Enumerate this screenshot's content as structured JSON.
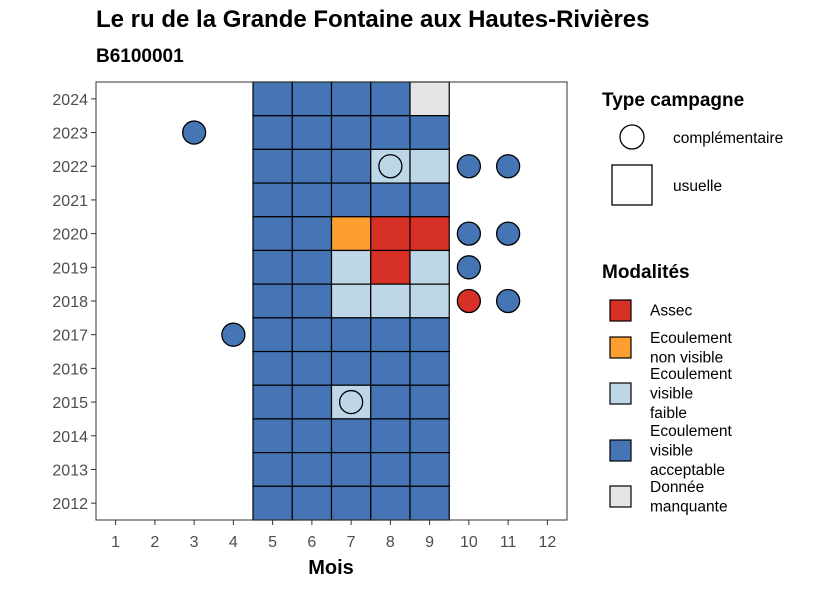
{
  "chart_data": {
    "type": "heatmap",
    "title": "Le ru de la Grande Fontaine aux Hautes-Rivières",
    "subtitle": "B6100001",
    "xlabel": "Mois",
    "ylabel": "",
    "x_ticks": [
      "1",
      "2",
      "3",
      "4",
      "5",
      "6",
      "7",
      "8",
      "9",
      "10",
      "11",
      "12"
    ],
    "y_ticks": [
      "2012",
      "2013",
      "2014",
      "2015",
      "2016",
      "2017",
      "2018",
      "2019",
      "2020",
      "2021",
      "2022",
      "2023",
      "2024"
    ],
    "xlim": [
      0.5,
      12.5
    ],
    "ylim": [
      2011.5,
      2024.5
    ],
    "grid": false,
    "legend_position": "right",
    "colors": {
      "Assec": "#d73027",
      "Ecoulement non visible": "#fd9f30",
      "Ecoulement visible faible": "#bdd7e7",
      "Ecoulement visible acceptable": "#4575b4",
      "Donnée manquante": "#e5e5e5"
    },
    "legend_campaign": {
      "title": "Type campagne",
      "items": [
        {
          "label": "complémentaire",
          "shape": "circle"
        },
        {
          "label": "usuelle",
          "shape": "square"
        }
      ]
    },
    "legend_modalities": {
      "title": "Modalités",
      "items": [
        {
          "key": "Assec",
          "lines": [
            "Assec"
          ]
        },
        {
          "key": "Ecoulement non visible",
          "lines": [
            "Ecoulement",
            "non visible"
          ]
        },
        {
          "key": "Ecoulement visible faible",
          "lines": [
            "Ecoulement",
            "visible",
            "faible"
          ]
        },
        {
          "key": "Ecoulement visible acceptable",
          "lines": [
            "Ecoulement",
            "visible",
            "acceptable"
          ]
        },
        {
          "key": "Donnée manquante",
          "lines": [
            "Donnée",
            "manquante"
          ]
        }
      ]
    },
    "usuelle": [
      {
        "year": 2024,
        "month": 5,
        "modalite": "Ecoulement visible acceptable"
      },
      {
        "year": 2024,
        "month": 6,
        "modalite": "Ecoulement visible acceptable"
      },
      {
        "year": 2024,
        "month": 7,
        "modalite": "Ecoulement visible acceptable"
      },
      {
        "year": 2024,
        "month": 8,
        "modalite": "Ecoulement visible acceptable"
      },
      {
        "year": 2024,
        "month": 9,
        "modalite": "Donnée manquante"
      },
      {
        "year": 2023,
        "month": 5,
        "modalite": "Ecoulement visible acceptable"
      },
      {
        "year": 2023,
        "month": 6,
        "modalite": "Ecoulement visible acceptable"
      },
      {
        "year": 2023,
        "month": 7,
        "modalite": "Ecoulement visible acceptable"
      },
      {
        "year": 2023,
        "month": 8,
        "modalite": "Ecoulement visible acceptable"
      },
      {
        "year": 2023,
        "month": 9,
        "modalite": "Ecoulement visible acceptable"
      },
      {
        "year": 2022,
        "month": 5,
        "modalite": "Ecoulement visible acceptable"
      },
      {
        "year": 2022,
        "month": 6,
        "modalite": "Ecoulement visible acceptable"
      },
      {
        "year": 2022,
        "month": 7,
        "modalite": "Ecoulement visible acceptable"
      },
      {
        "year": 2022,
        "month": 8,
        "modalite": "Ecoulement visible faible"
      },
      {
        "year": 2022,
        "month": 9,
        "modalite": "Ecoulement visible faible"
      },
      {
        "year": 2021,
        "month": 5,
        "modalite": "Ecoulement visible acceptable"
      },
      {
        "year": 2021,
        "month": 6,
        "modalite": "Ecoulement visible acceptable"
      },
      {
        "year": 2021,
        "month": 7,
        "modalite": "Ecoulement visible acceptable"
      },
      {
        "year": 2021,
        "month": 8,
        "modalite": "Ecoulement visible acceptable"
      },
      {
        "year": 2021,
        "month": 9,
        "modalite": "Ecoulement visible acceptable"
      },
      {
        "year": 2020,
        "month": 5,
        "modalite": "Ecoulement visible acceptable"
      },
      {
        "year": 2020,
        "month": 6,
        "modalite": "Ecoulement visible acceptable"
      },
      {
        "year": 2020,
        "month": 7,
        "modalite": "Ecoulement non visible"
      },
      {
        "year": 2020,
        "month": 8,
        "modalite": "Assec"
      },
      {
        "year": 2020,
        "month": 9,
        "modalite": "Assec"
      },
      {
        "year": 2019,
        "month": 5,
        "modalite": "Ecoulement visible acceptable"
      },
      {
        "year": 2019,
        "month": 6,
        "modalite": "Ecoulement visible acceptable"
      },
      {
        "year": 2019,
        "month": 7,
        "modalite": "Ecoulement visible faible"
      },
      {
        "year": 2019,
        "month": 8,
        "modalite": "Assec"
      },
      {
        "year": 2019,
        "month": 9,
        "modalite": "Ecoulement visible faible"
      },
      {
        "year": 2018,
        "month": 5,
        "modalite": "Ecoulement visible acceptable"
      },
      {
        "year": 2018,
        "month": 6,
        "modalite": "Ecoulement visible acceptable"
      },
      {
        "year": 2018,
        "month": 7,
        "modalite": "Ecoulement visible faible"
      },
      {
        "year": 2018,
        "month": 8,
        "modalite": "Ecoulement visible faible"
      },
      {
        "year": 2018,
        "month": 9,
        "modalite": "Ecoulement visible faible"
      },
      {
        "year": 2017,
        "month": 5,
        "modalite": "Ecoulement visible acceptable"
      },
      {
        "year": 2017,
        "month": 6,
        "modalite": "Ecoulement visible acceptable"
      },
      {
        "year": 2017,
        "month": 7,
        "modalite": "Ecoulement visible acceptable"
      },
      {
        "year": 2017,
        "month": 8,
        "modalite": "Ecoulement visible acceptable"
      },
      {
        "year": 2017,
        "month": 9,
        "modalite": "Ecoulement visible acceptable"
      },
      {
        "year": 2016,
        "month": 5,
        "modalite": "Ecoulement visible acceptable"
      },
      {
        "year": 2016,
        "month": 6,
        "modalite": "Ecoulement visible acceptable"
      },
      {
        "year": 2016,
        "month": 7,
        "modalite": "Ecoulement visible acceptable"
      },
      {
        "year": 2016,
        "month": 8,
        "modalite": "Ecoulement visible acceptable"
      },
      {
        "year": 2016,
        "month": 9,
        "modalite": "Ecoulement visible acceptable"
      },
      {
        "year": 2015,
        "month": 5,
        "modalite": "Ecoulement visible acceptable"
      },
      {
        "year": 2015,
        "month": 6,
        "modalite": "Ecoulement visible acceptable"
      },
      {
        "year": 2015,
        "month": 7,
        "modalite": "Ecoulement visible faible"
      },
      {
        "year": 2015,
        "month": 8,
        "modalite": "Ecoulement visible acceptable"
      },
      {
        "year": 2015,
        "month": 9,
        "modalite": "Ecoulement visible acceptable"
      },
      {
        "year": 2014,
        "month": 5,
        "modalite": "Ecoulement visible acceptable"
      },
      {
        "year": 2014,
        "month": 6,
        "modalite": "Ecoulement visible acceptable"
      },
      {
        "year": 2014,
        "month": 7,
        "modalite": "Ecoulement visible acceptable"
      },
      {
        "year": 2014,
        "month": 8,
        "modalite": "Ecoulement visible acceptable"
      },
      {
        "year": 2014,
        "month": 9,
        "modalite": "Ecoulement visible acceptable"
      },
      {
        "year": 2013,
        "month": 5,
        "modalite": "Ecoulement visible acceptable"
      },
      {
        "year": 2013,
        "month": 6,
        "modalite": "Ecoulement visible acceptable"
      },
      {
        "year": 2013,
        "month": 7,
        "modalite": "Ecoulement visible acceptable"
      },
      {
        "year": 2013,
        "month": 8,
        "modalite": "Ecoulement visible acceptable"
      },
      {
        "year": 2013,
        "month": 9,
        "modalite": "Ecoulement visible acceptable"
      },
      {
        "year": 2012,
        "month": 5,
        "modalite": "Ecoulement visible acceptable"
      },
      {
        "year": 2012,
        "month": 6,
        "modalite": "Ecoulement visible acceptable"
      },
      {
        "year": 2012,
        "month": 7,
        "modalite": "Ecoulement visible acceptable"
      },
      {
        "year": 2012,
        "month": 8,
        "modalite": "Ecoulement visible acceptable"
      },
      {
        "year": 2012,
        "month": 9,
        "modalite": "Ecoulement visible acceptable"
      }
    ],
    "complementaire": [
      {
        "year": 2023,
        "month": 3,
        "modalite": "Ecoulement visible acceptable"
      },
      {
        "year": 2022,
        "month": 8,
        "modalite": "Ecoulement visible faible"
      },
      {
        "year": 2022,
        "month": 10,
        "modalite": "Ecoulement visible acceptable"
      },
      {
        "year": 2022,
        "month": 11,
        "modalite": "Ecoulement visible acceptable"
      },
      {
        "year": 2020,
        "month": 10,
        "modalite": "Ecoulement visible acceptable"
      },
      {
        "year": 2020,
        "month": 11,
        "modalite": "Ecoulement visible acceptable"
      },
      {
        "year": 2019,
        "month": 10,
        "modalite": "Ecoulement visible acceptable"
      },
      {
        "year": 2018,
        "month": 10,
        "modalite": "Assec"
      },
      {
        "year": 2018,
        "month": 11,
        "modalite": "Ecoulement visible acceptable"
      },
      {
        "year": 2017,
        "month": 4,
        "modalite": "Ecoulement visible acceptable"
      },
      {
        "year": 2015,
        "month": 7,
        "modalite": "Ecoulement visible faible"
      }
    ]
  }
}
